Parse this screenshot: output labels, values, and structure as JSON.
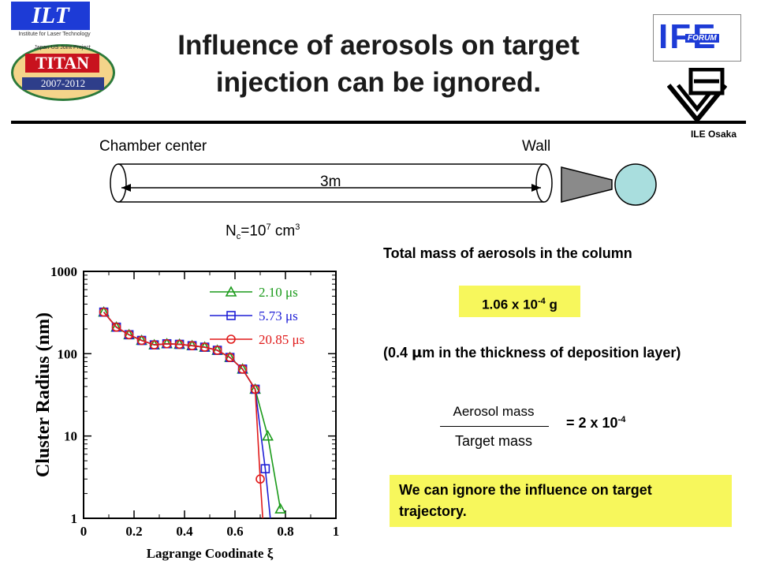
{
  "logos": {
    "ilt_text": "ILT",
    "ilt_sub": "Institute for Laser Technology",
    "titan_top": "Japan-US Joint Project",
    "titan_text": "TITAN",
    "titan_years": "2007-2012",
    "ife_text": "IFE",
    "forum_text": "FORUM"
  },
  "title": {
    "line1": "Influence of aerosols on target",
    "line2": "injection can be ignored."
  },
  "ile_osaka": "ILE Osaka",
  "diagram": {
    "chamber_center": "Chamber center",
    "wall": "Wall",
    "distance": "3m",
    "nc_label": "N",
    "nc_sub": "c",
    "nc_eq": "=10",
    "nc_exp": "7",
    "nc_unit": " cm",
    "nc_unit_exp": "3"
  },
  "right": {
    "total_mass_label": "Total mass of aerosols in the column",
    "mass_value_pre": "1.06 x 10",
    "mass_value_exp": "-4",
    "mass_value_unit": " g",
    "thickness_note_pre": "(0.4 ",
    "thickness_note_mu": "μ",
    "thickness_note_post": "m in the thickness of deposition layer)",
    "ratio_numerator": "Aerosol mass",
    "ratio_denominator": "Target mass",
    "ratio_value_pre": "= 2 x 10",
    "ratio_value_exp": "-4",
    "conclusion": "We can ignore the influence on target trajectory."
  },
  "colors": {
    "highlight": "#f7f75c",
    "series_green": "#1a9a1a",
    "series_blue": "#1f1fd6",
    "series_red": "#e01a1a",
    "ife_blue": "#1d3bd6"
  },
  "chart_data": {
    "type": "line",
    "xlabel": "Lagrange Coodinate ξ",
    "ylabel": "Cluster Radius (nm)",
    "xlim": [
      0,
      1
    ],
    "ylim": [
      1,
      1000
    ],
    "yscale": "log",
    "x_ticks": [
      "0",
      "0.2",
      "0.4",
      "0.6",
      "0.8",
      "1"
    ],
    "x_tick_values": [
      0,
      0.2,
      0.4,
      0.6,
      0.8,
      1
    ],
    "y_ticks": [
      "1",
      "10",
      "100",
      "1000"
    ],
    "y_tick_values": [
      1,
      10,
      100,
      1000
    ],
    "legend_position": "top-right",
    "series": [
      {
        "name": "2.10 μs",
        "marker": "triangle",
        "color": "#1a9a1a",
        "x": [
          0.08,
          0.13,
          0.18,
          0.23,
          0.28,
          0.33,
          0.38,
          0.43,
          0.48,
          0.53,
          0.58,
          0.63,
          0.68,
          0.73,
          0.78
        ],
        "y": [
          320,
          210,
          170,
          145,
          128,
          132,
          130,
          125,
          120,
          110,
          90,
          65,
          37,
          10,
          1.3
        ]
      },
      {
        "name": "5.73 μs",
        "marker": "square",
        "color": "#1f1fd6",
        "x": [
          0.08,
          0.13,
          0.18,
          0.23,
          0.28,
          0.33,
          0.38,
          0.43,
          0.48,
          0.53,
          0.58,
          0.63,
          0.68,
          0.72,
          0.74
        ],
        "y": [
          320,
          210,
          170,
          145,
          128,
          132,
          130,
          125,
          120,
          110,
          90,
          65,
          37,
          4,
          1
        ]
      },
      {
        "name": "20.85 μs",
        "marker": "circle",
        "color": "#e01a1a",
        "x": [
          0.08,
          0.13,
          0.18,
          0.23,
          0.28,
          0.33,
          0.38,
          0.43,
          0.48,
          0.53,
          0.58,
          0.63,
          0.68,
          0.7,
          0.71
        ],
        "y": [
          320,
          210,
          170,
          145,
          128,
          132,
          130,
          125,
          120,
          110,
          90,
          65,
          37,
          3,
          1
        ]
      }
    ]
  }
}
